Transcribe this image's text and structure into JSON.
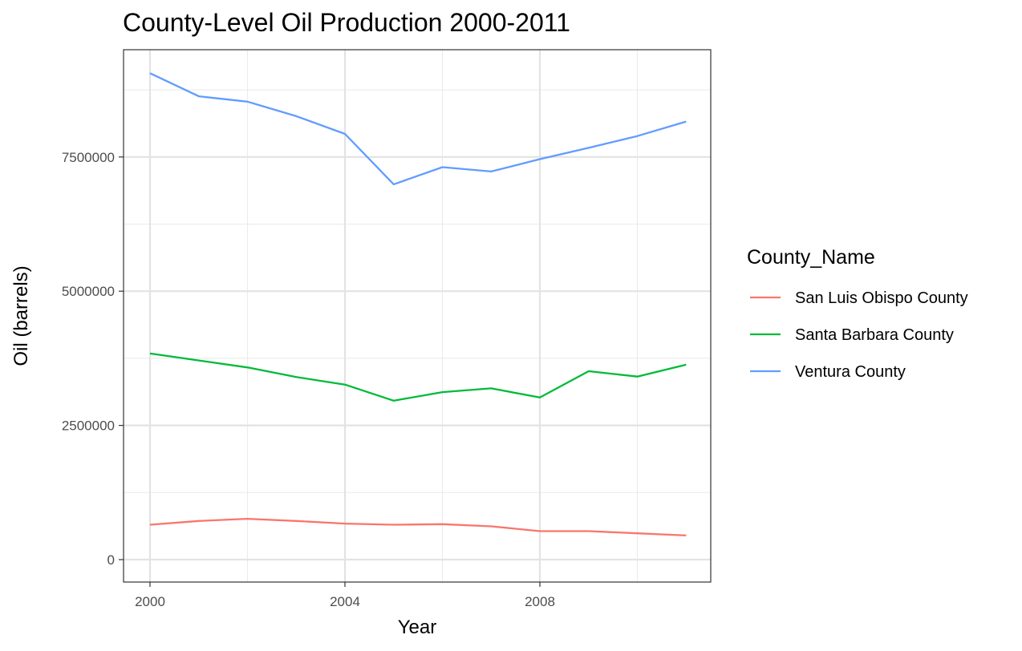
{
  "chart_data": {
    "type": "line",
    "title": "County-Level Oil Production 2000-2011",
    "xlabel": "Year",
    "ylabel": "Oil (barrels)",
    "xlim": [
      2000,
      2011
    ],
    "ylim": [
      0,
      9000000
    ],
    "x_ticks": [
      2000,
      2004,
      2008
    ],
    "y_ticks": [
      0,
      2500000,
      5000000,
      7500000
    ],
    "x_tick_labels": [
      "2000",
      "2004",
      "2008"
    ],
    "y_tick_labels": [
      "0",
      "2500000",
      "5000000",
      "7500000"
    ],
    "x": [
      2000,
      2001,
      2002,
      2003,
      2004,
      2005,
      2006,
      2007,
      2008,
      2009,
      2010,
      2011
    ],
    "grid": true,
    "legend": {
      "title": "County_Name",
      "position": "right"
    },
    "series": [
      {
        "name": "San Luis Obispo County",
        "color": "#F8766D",
        "values": [
          650000,
          720000,
          760000,
          720000,
          670000,
          650000,
          660000,
          620000,
          530000,
          530000,
          490000,
          450000
        ]
      },
      {
        "name": "Santa Barbara County",
        "color": "#00BA38",
        "values": [
          3840000,
          3710000,
          3580000,
          3400000,
          3260000,
          2960000,
          3120000,
          3190000,
          3020000,
          3510000,
          3410000,
          3630000
        ]
      },
      {
        "name": "Ventura County",
        "color": "#619CFF",
        "values": [
          9060000,
          8630000,
          8530000,
          8260000,
          7930000,
          6990000,
          7310000,
          7230000,
          7460000,
          7670000,
          7890000,
          8160000
        ]
      }
    ]
  }
}
